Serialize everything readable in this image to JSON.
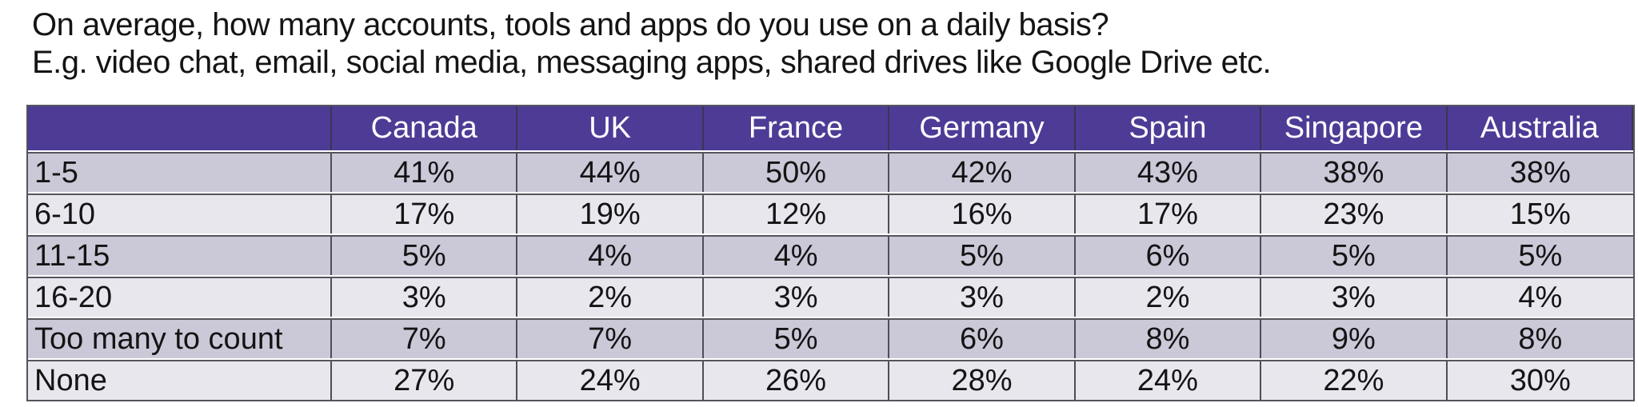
{
  "title": {
    "line1": "On average, how many accounts, tools and apps do you use on a daily basis?",
    "line2": "E.g. video chat, email, social media, messaging apps, shared drives like Google Drive etc."
  },
  "colors": {
    "header_bg": "#4e3b96",
    "header_text": "#ffffff",
    "row_dark": "#cbc9d8",
    "row_light": "#e8e7ee",
    "border": "#56545c",
    "divider": "#4f4d56",
    "divider_dark": "#3b3650",
    "text": "#141414"
  },
  "table": {
    "corner_label": "",
    "columns": [
      "Canada",
      "UK",
      "France",
      "Germany",
      "Spain",
      "Singapore",
      "Australia"
    ],
    "rows": [
      {
        "label": "1-5",
        "values": [
          "41%",
          "44%",
          "50%",
          "42%",
          "43%",
          "38%",
          "38%"
        ]
      },
      {
        "label": "6-10",
        "values": [
          "17%",
          "19%",
          "12%",
          "16%",
          "17%",
          "23%",
          "15%"
        ]
      },
      {
        "label": "11-15",
        "values": [
          "5%",
          "4%",
          "4%",
          "5%",
          "6%",
          "5%",
          "5%"
        ]
      },
      {
        "label": "16-20",
        "values": [
          "3%",
          "2%",
          "3%",
          "3%",
          "2%",
          "3%",
          "4%"
        ]
      },
      {
        "label": "Too many to count",
        "values": [
          "7%",
          "7%",
          "5%",
          "6%",
          "8%",
          "9%",
          "8%"
        ]
      },
      {
        "label": "None",
        "values": [
          "27%",
          "24%",
          "26%",
          "28%",
          "24%",
          "22%",
          "30%"
        ]
      }
    ]
  },
  "chart_data": {
    "type": "table",
    "title": "On average, how many accounts, tools and apps do you use on a daily basis? E.g. video chat, email, social media, messaging apps, shared drives like Google Drive etc.",
    "categories": [
      "1-5",
      "6-10",
      "11-15",
      "16-20",
      "Too many to count",
      "None"
    ],
    "series": [
      {
        "name": "Canada",
        "values": [
          41,
          17,
          5,
          3,
          7,
          27
        ]
      },
      {
        "name": "UK",
        "values": [
          44,
          19,
          4,
          2,
          7,
          24
        ]
      },
      {
        "name": "France",
        "values": [
          50,
          12,
          4,
          3,
          5,
          26
        ]
      },
      {
        "name": "Germany",
        "values": [
          42,
          16,
          5,
          3,
          6,
          28
        ]
      },
      {
        "name": "Spain",
        "values": [
          43,
          17,
          6,
          2,
          8,
          24
        ]
      },
      {
        "name": "Singapore",
        "values": [
          38,
          23,
          5,
          3,
          9,
          22
        ]
      },
      {
        "name": "Australia",
        "values": [
          38,
          15,
          5,
          4,
          8,
          30
        ]
      }
    ],
    "unit": "%"
  }
}
